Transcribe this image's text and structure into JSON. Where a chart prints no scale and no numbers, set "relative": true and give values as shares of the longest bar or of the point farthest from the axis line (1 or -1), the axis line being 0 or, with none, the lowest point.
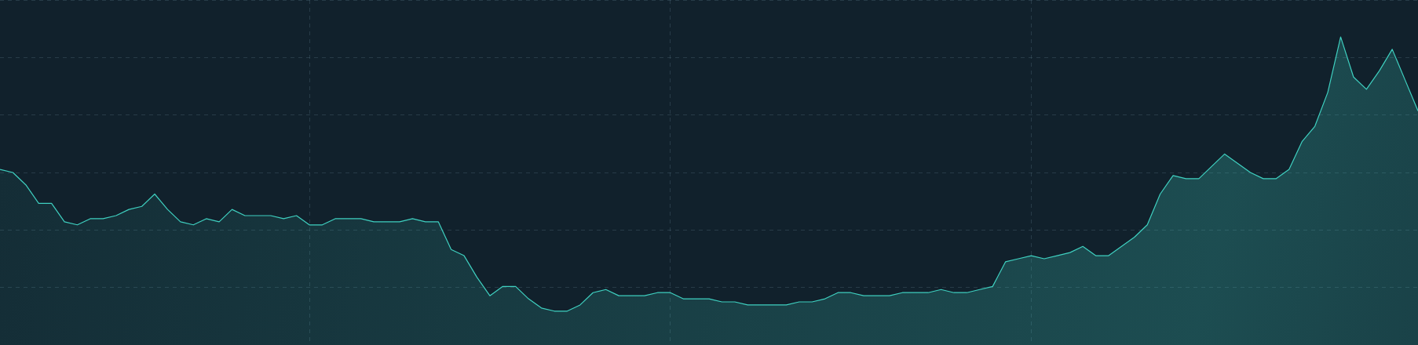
{
  "chart_data": {
    "type": "area",
    "relative": true,
    "grid": true,
    "legend": false,
    "marker": "none",
    "line_style": "solid",
    "categories": [
      null,
      null,
      null,
      null,
      null,
      null,
      null,
      null,
      null,
      null,
      null,
      null,
      null,
      null,
      null,
      null,
      null,
      null,
      null,
      null,
      null,
      null,
      null,
      null,
      null,
      null,
      null,
      null,
      null,
      null,
      null,
      null,
      null,
      null,
      null,
      null,
      null,
      null,
      null,
      null,
      null,
      null,
      null,
      null,
      null,
      null,
      null,
      null,
      null,
      null,
      null,
      null,
      null,
      null,
      null,
      null,
      null,
      null,
      null,
      null,
      null,
      null,
      null,
      null,
      null,
      null,
      null,
      null,
      null,
      null,
      null,
      null,
      null,
      null,
      null,
      null,
      null,
      null,
      null,
      null,
      null,
      null,
      null,
      null,
      null,
      null,
      null,
      null,
      null,
      null,
      null,
      null,
      null,
      null,
      null,
      null,
      null,
      null,
      null,
      null,
      null,
      null,
      null,
      null,
      null,
      null,
      null,
      null,
      null,
      null,
      null
    ],
    "series": [
      {
        "color": "#3fd0c0",
        "values": [
          0.57,
          0.56,
          0.52,
          0.46,
          0.46,
          0.4,
          0.39,
          0.41,
          0.41,
          0.42,
          0.44,
          0.45,
          0.49,
          0.44,
          0.4,
          0.39,
          0.41,
          0.4,
          0.44,
          0.42,
          0.42,
          0.42,
          0.41,
          0.42,
          0.39,
          0.39,
          0.41,
          0.41,
          0.41,
          0.4,
          0.4,
          0.4,
          0.41,
          0.4,
          0.4,
          0.31,
          0.29,
          0.22,
          0.16,
          0.19,
          0.19,
          0.15,
          0.12,
          0.11,
          0.11,
          0.13,
          0.17,
          0.18,
          0.16,
          0.16,
          0.16,
          0.17,
          0.17,
          0.15,
          0.15,
          0.15,
          0.14,
          0.14,
          0.13,
          0.13,
          0.13,
          0.13,
          0.14,
          0.14,
          0.15,
          0.17,
          0.17,
          0.16,
          0.16,
          0.16,
          0.17,
          0.17,
          0.17,
          0.18,
          0.17,
          0.17,
          0.18,
          0.19,
          0.27,
          0.28,
          0.29,
          0.28,
          0.29,
          0.3,
          0.32,
          0.29,
          0.29,
          0.32,
          0.35,
          0.39,
          0.49,
          0.55,
          0.54,
          0.54,
          0.58,
          0.62,
          0.59,
          0.56,
          0.54,
          0.54,
          0.57,
          0.66,
          0.71,
          0.82,
          1,
          0.87,
          0.83,
          0.89,
          0.96,
          0.86,
          0.76
        ]
      }
    ]
  }
}
